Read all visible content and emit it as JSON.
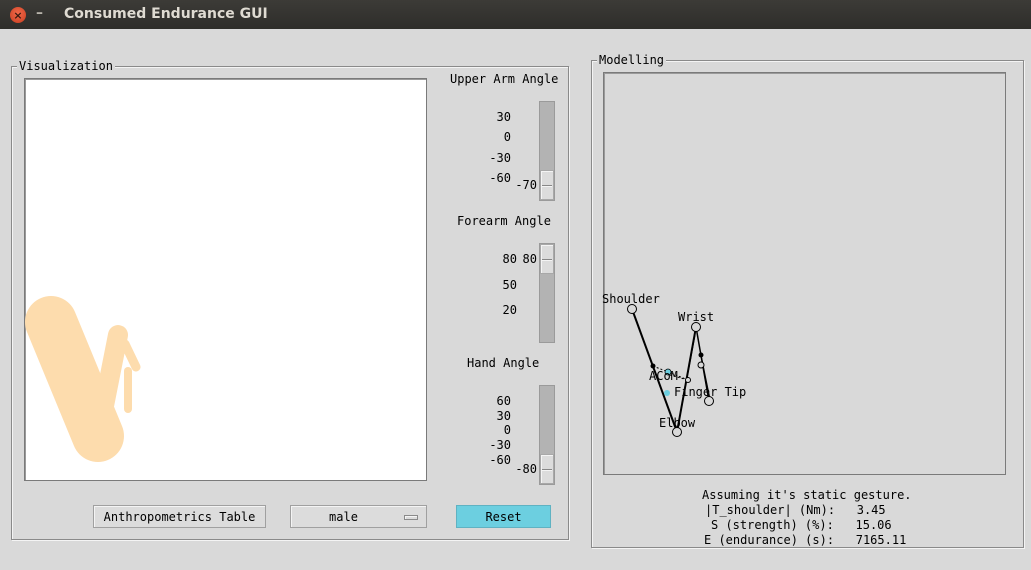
{
  "window": {
    "title": "Consumed Endurance GUI",
    "close_glyph": "×",
    "minimize_glyph": "–"
  },
  "visualization": {
    "label": "Visualization",
    "arm_color": "#fddcad",
    "upper_arm": {
      "title": "Upper Arm Angle",
      "ticks": [
        "30",
        "0",
        "-30",
        "-60"
      ],
      "value": "-70"
    },
    "forearm": {
      "title": "Forearm Angle",
      "ticks": [
        "80",
        "50",
        "20"
      ],
      "value": "80"
    },
    "hand": {
      "title": "Hand Angle",
      "ticks": [
        "60",
        "30",
        "0",
        "-30",
        "-60"
      ],
      "value": "-80"
    }
  },
  "buttons": {
    "anthropometrics": "Anthropometrics Table",
    "gender_selected": "male",
    "reset": "Reset",
    "reset_color": "#6ccfe0"
  },
  "modelling": {
    "label": "Modelling",
    "point_labels": {
      "shoulder": "Shoulder",
      "wrist": "Wrist",
      "finger_tip": "Finger Tip",
      "elbow": "Elbow",
      "acom": "ACoM"
    },
    "info": {
      "line1": "Assuming it's static gesture.",
      "line2": "|T_shoulder| (Nm):   3.45",
      "line3": "S (strength) (%):   15.06",
      "line4": "E (endurance) (s):   7165.11"
    }
  }
}
